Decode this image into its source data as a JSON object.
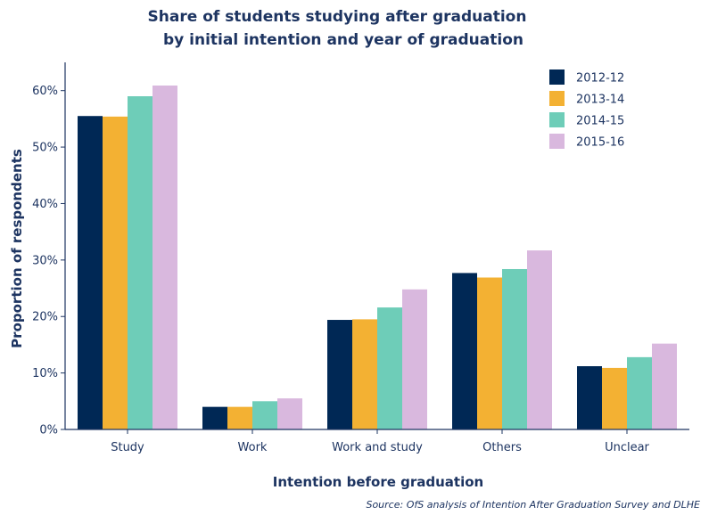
{
  "chart_data": {
    "type": "bar",
    "title_lines": [
      "Share of students studying after graduation",
      "by initial intention and year of graduation"
    ],
    "xlabel": "Intention before graduation",
    "ylabel": "Proportion of respondents",
    "source": "Source: OfS analysis of Intention After Graduation Survey and DLHE",
    "categories": [
      "Study",
      "Work",
      "Work and study",
      "Others",
      "Unclear"
    ],
    "series": [
      {
        "name": "2012-12",
        "color": "#002855",
        "values": [
          55.5,
          4.0,
          19.4,
          27.7,
          11.2
        ]
      },
      {
        "name": "2013-14",
        "color": "#f3b133",
        "values": [
          55.4,
          4.0,
          19.5,
          26.9,
          10.9
        ]
      },
      {
        "name": "2014-15",
        "color": "#6ecdb8",
        "values": [
          59.0,
          5.0,
          21.6,
          28.4,
          12.8
        ]
      },
      {
        "name": "2015-16",
        "color": "#d9b8de",
        "values": [
          60.9,
          5.5,
          24.8,
          31.7,
          15.2
        ]
      }
    ],
    "yticks": [
      "0%",
      "10%",
      "20%",
      "30%",
      "40%",
      "50%",
      "60%"
    ],
    "ylim": [
      0,
      65
    ],
    "legend_position": "top-right",
    "grid": false,
    "axis_color": "#1d3461"
  }
}
